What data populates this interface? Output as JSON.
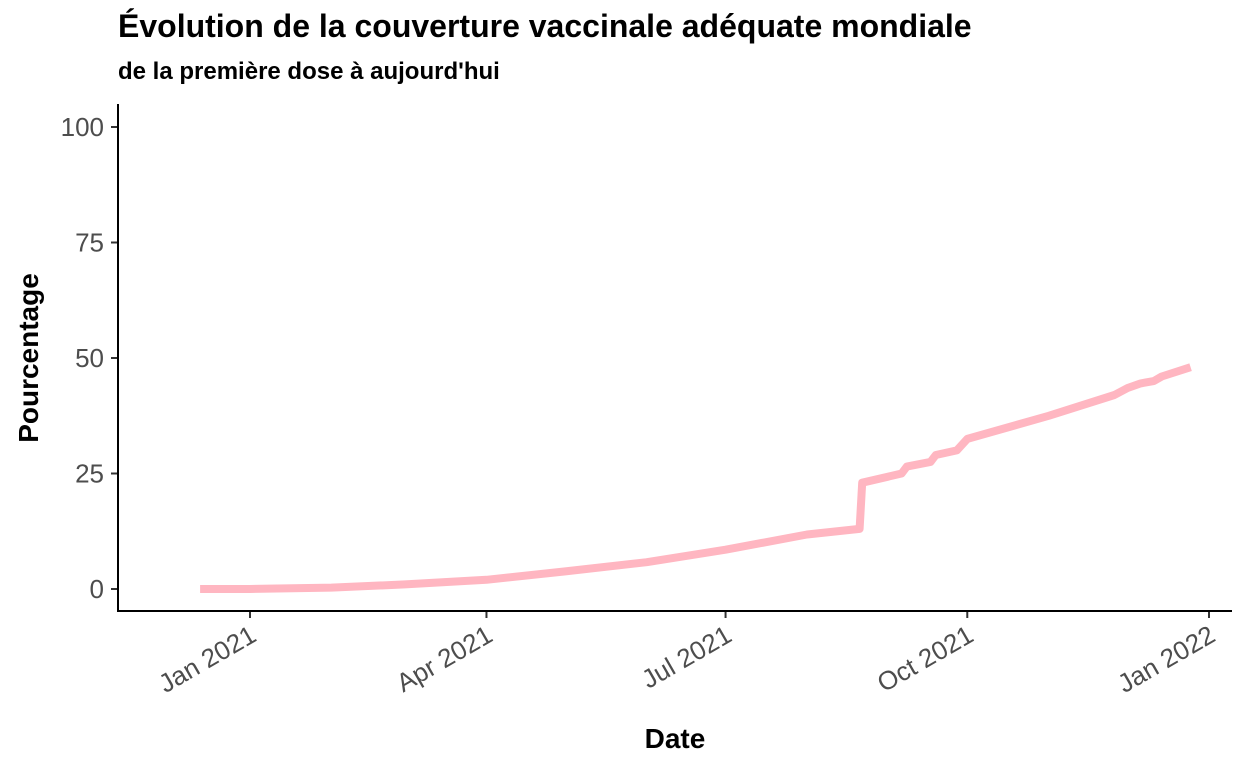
{
  "chart_data": {
    "type": "line",
    "title": "Évolution de la couverture vaccinale adéquate mondiale",
    "subtitle": "de la première dose à aujourd'hui",
    "xlabel": "Date",
    "ylabel": "Pourcentage",
    "ylim": [
      0,
      100
    ],
    "xlim": [
      "2020-12-01",
      "2022-01-01"
    ],
    "y_ticks": [
      0,
      25,
      50,
      75,
      100
    ],
    "x_ticks": [
      {
        "date": "2021-01-01",
        "label": "Jan 2021"
      },
      {
        "date": "2021-04-01",
        "label": "Apr 2021"
      },
      {
        "date": "2021-07-01",
        "label": "Jul 2021"
      },
      {
        "date": "2021-10-01",
        "label": "Oct 2021"
      },
      {
        "date": "2022-01-01",
        "label": "Jan 2022"
      }
    ],
    "grid": false,
    "line_color": "#ffb6c1",
    "series": [
      {
        "x": [
          "2020-12-13",
          "2021-01-01",
          "2021-02-01",
          "2021-03-01",
          "2021-04-01",
          "2021-05-01",
          "2021-06-01",
          "2021-07-01",
          "2021-08-01",
          "2021-08-21",
          "2021-08-22",
          "2021-09-06",
          "2021-09-08",
          "2021-09-17",
          "2021-09-19",
          "2021-09-27",
          "2021-10-01",
          "2021-11-01",
          "2021-11-26",
          "2021-12-01",
          "2021-12-06",
          "2021-12-11",
          "2021-12-14",
          "2021-12-25"
        ],
        "y": [
          0,
          0,
          0.3,
          1.0,
          2.0,
          3.8,
          5.8,
          8.5,
          11.8,
          13.0,
          23.0,
          25.0,
          26.5,
          27.5,
          29.0,
          30.0,
          32.5,
          37.5,
          42.0,
          43.5,
          44.5,
          45.0,
          46.0,
          48.0
        ]
      }
    ]
  }
}
